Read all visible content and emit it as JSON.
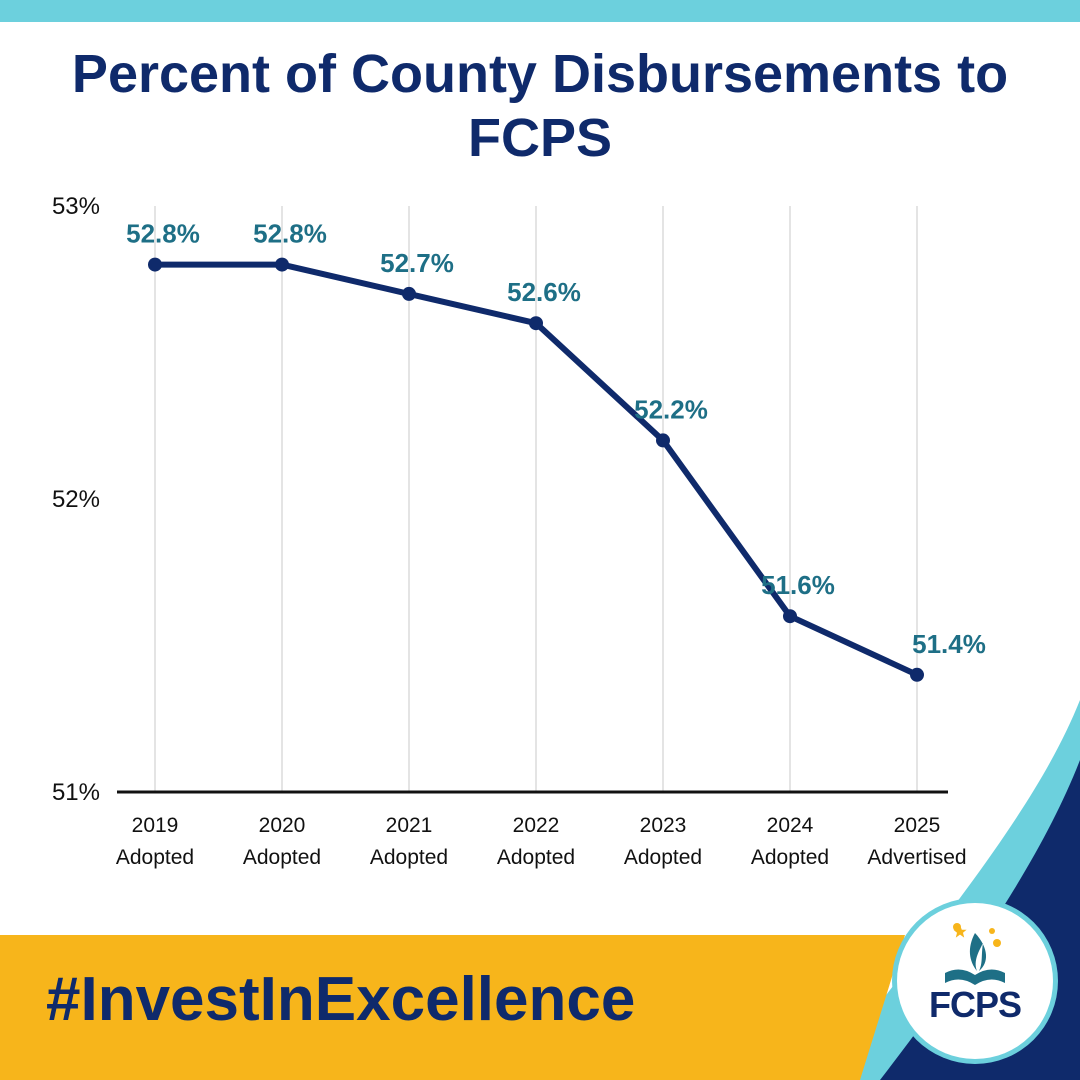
{
  "header": {
    "title": "Percent of County Disbursements to FCPS"
  },
  "footer": {
    "hashtag": "#InvestInExcellence",
    "logo_text": "FCPS"
  },
  "colors": {
    "navy": "#0f2a6b",
    "teal": "#6cd0dd",
    "label_teal": "#1e6f86",
    "gold": "#f7b51b",
    "grid": "#dcdcdc"
  },
  "chart_data": {
    "type": "line",
    "categories": [
      [
        "2019",
        "Adopted"
      ],
      [
        "2020",
        "Adopted"
      ],
      [
        "2021",
        "Adopted"
      ],
      [
        "2022",
        "Adopted"
      ],
      [
        "2023",
        "Adopted"
      ],
      [
        "2024",
        "Adopted"
      ],
      [
        "2025",
        "Advertised"
      ]
    ],
    "values": [
      52.8,
      52.8,
      52.7,
      52.6,
      52.2,
      51.6,
      51.4
    ],
    "data_labels": [
      "52.8%",
      "52.8%",
      "52.7%",
      "52.6%",
      "52.2%",
      "51.6%",
      "51.4%"
    ],
    "y_ticks": [
      {
        "value": 53,
        "label": "53%"
      },
      {
        "value": 52,
        "label": "52%"
      },
      {
        "value": 51,
        "label": "51%"
      }
    ],
    "ylim": [
      51,
      53
    ],
    "grid": "vertical",
    "legend": "none"
  }
}
